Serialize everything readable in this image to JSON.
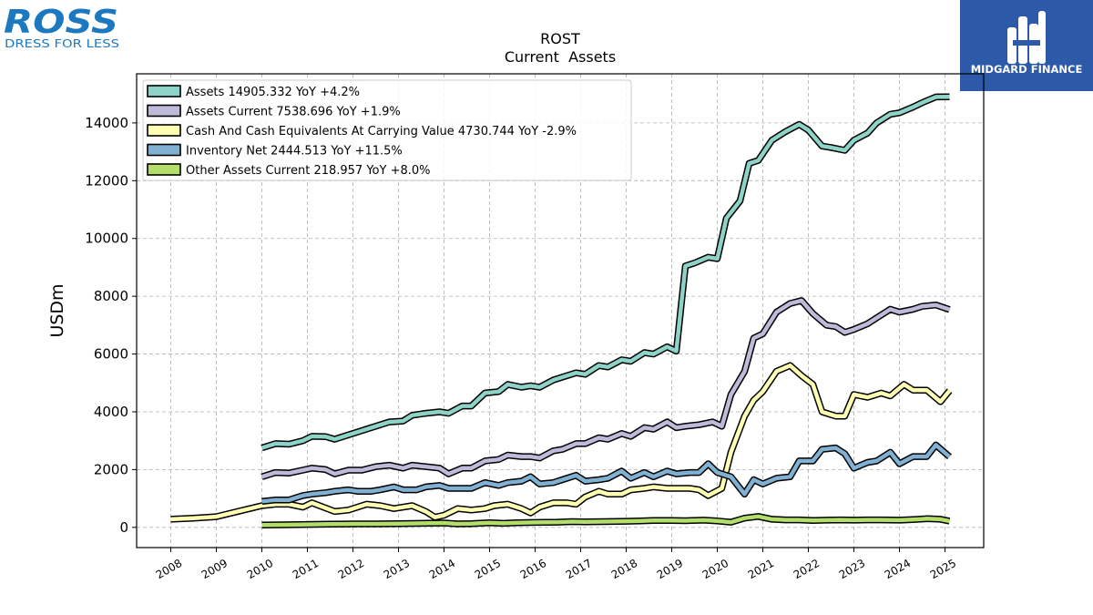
{
  "logos": {
    "left": {
      "brand": "ROSS",
      "tagline": "DRESS FOR LESS",
      "color": "#1c79c0"
    },
    "right": {
      "brand": "MIDGARD FINANCE",
      "bg": "#2c5aa8"
    }
  },
  "chart_data": {
    "type": "line",
    "title": "ROST",
    "subtitle": "Current  Assets",
    "ylabel": "USDm",
    "xlabel": "",
    "xlim": [
      2007.25,
      2025.85
    ],
    "ylim": [
      -700,
      15700
    ],
    "yticks": [
      0,
      2000,
      4000,
      6000,
      8000,
      10000,
      12000,
      14000
    ],
    "xticks": [
      2008,
      2009,
      2010,
      2011,
      2012,
      2013,
      2014,
      2015,
      2016,
      2017,
      2018,
      2019,
      2020,
      2021,
      2022,
      2023,
      2024,
      2025
    ],
    "grid": true,
    "legend_position": "top-left",
    "series": [
      {
        "name": "Assets  14905.332 YoY +4.2%",
        "color": "#8dd3c7",
        "points": [
          [
            2010.0,
            2750
          ],
          [
            2010.3,
            2900
          ],
          [
            2010.6,
            2880
          ],
          [
            2010.9,
            3000
          ],
          [
            2011.1,
            3150
          ],
          [
            2011.4,
            3140
          ],
          [
            2011.6,
            3050
          ],
          [
            2011.9,
            3200
          ],
          [
            2012.2,
            3350
          ],
          [
            2012.5,
            3500
          ],
          [
            2012.8,
            3650
          ],
          [
            2013.1,
            3680
          ],
          [
            2013.3,
            3880
          ],
          [
            2013.6,
            3950
          ],
          [
            2013.9,
            4000
          ],
          [
            2014.1,
            3950
          ],
          [
            2014.4,
            4200
          ],
          [
            2014.6,
            4200
          ],
          [
            2014.9,
            4650
          ],
          [
            2015.2,
            4700
          ],
          [
            2015.4,
            4950
          ],
          [
            2015.7,
            4850
          ],
          [
            2015.9,
            4900
          ],
          [
            2016.1,
            4850
          ],
          [
            2016.4,
            5100
          ],
          [
            2016.6,
            5200
          ],
          [
            2016.9,
            5350
          ],
          [
            2017.1,
            5300
          ],
          [
            2017.4,
            5600
          ],
          [
            2017.6,
            5550
          ],
          [
            2017.9,
            5800
          ],
          [
            2018.1,
            5750
          ],
          [
            2018.4,
            6050
          ],
          [
            2018.6,
            6000
          ],
          [
            2018.9,
            6250
          ],
          [
            2019.1,
            6100
          ],
          [
            2019.3,
            9050
          ],
          [
            2019.5,
            9150
          ],
          [
            2019.8,
            9350
          ],
          [
            2020.0,
            9300
          ],
          [
            2020.2,
            10700
          ],
          [
            2020.5,
            11300
          ],
          [
            2020.7,
            12600
          ],
          [
            2020.9,
            12700
          ],
          [
            2021.2,
            13400
          ],
          [
            2021.5,
            13700
          ],
          [
            2021.8,
            13950
          ],
          [
            2022.0,
            13750
          ],
          [
            2022.3,
            13200
          ],
          [
            2022.5,
            13150
          ],
          [
            2022.8,
            13050
          ],
          [
            2023.0,
            13400
          ],
          [
            2023.3,
            13650
          ],
          [
            2023.5,
            14000
          ],
          [
            2023.8,
            14300
          ],
          [
            2024.0,
            14350
          ],
          [
            2024.3,
            14550
          ],
          [
            2024.5,
            14700
          ],
          [
            2024.8,
            14900
          ],
          [
            2025.1,
            14905
          ]
        ]
      },
      {
        "name": "Assets Current  7538.696 YoY +1.9%",
        "color": "#bebada",
        "points": [
          [
            2010.0,
            1750
          ],
          [
            2010.3,
            1900
          ],
          [
            2010.6,
            1880
          ],
          [
            2010.9,
            1980
          ],
          [
            2011.1,
            2050
          ],
          [
            2011.4,
            2000
          ],
          [
            2011.6,
            1850
          ],
          [
            2011.9,
            1980
          ],
          [
            2012.2,
            1980
          ],
          [
            2012.5,
            2100
          ],
          [
            2012.8,
            2150
          ],
          [
            2013.1,
            2050
          ],
          [
            2013.3,
            2150
          ],
          [
            2013.6,
            2100
          ],
          [
            2013.9,
            2050
          ],
          [
            2014.1,
            1850
          ],
          [
            2014.4,
            2050
          ],
          [
            2014.6,
            2050
          ],
          [
            2014.9,
            2300
          ],
          [
            2015.2,
            2350
          ],
          [
            2015.4,
            2500
          ],
          [
            2015.7,
            2450
          ],
          [
            2015.9,
            2450
          ],
          [
            2016.1,
            2400
          ],
          [
            2016.4,
            2650
          ],
          [
            2016.6,
            2700
          ],
          [
            2016.9,
            2900
          ],
          [
            2017.1,
            2900
          ],
          [
            2017.4,
            3100
          ],
          [
            2017.6,
            3050
          ],
          [
            2017.9,
            3250
          ],
          [
            2018.1,
            3150
          ],
          [
            2018.4,
            3450
          ],
          [
            2018.6,
            3400
          ],
          [
            2018.9,
            3650
          ],
          [
            2019.1,
            3450
          ],
          [
            2019.3,
            3500
          ],
          [
            2019.6,
            3550
          ],
          [
            2019.9,
            3650
          ],
          [
            2020.1,
            3500
          ],
          [
            2020.3,
            4600
          ],
          [
            2020.6,
            5400
          ],
          [
            2020.8,
            6550
          ],
          [
            2021.0,
            6700
          ],
          [
            2021.3,
            7450
          ],
          [
            2021.6,
            7750
          ],
          [
            2021.85,
            7850
          ],
          [
            2022.1,
            7400
          ],
          [
            2022.4,
            7000
          ],
          [
            2022.6,
            6950
          ],
          [
            2022.8,
            6750
          ],
          [
            2023.0,
            6850
          ],
          [
            2023.3,
            7050
          ],
          [
            2023.5,
            7250
          ],
          [
            2023.8,
            7550
          ],
          [
            2024.0,
            7450
          ],
          [
            2024.3,
            7550
          ],
          [
            2024.5,
            7650
          ],
          [
            2024.8,
            7700
          ],
          [
            2025.1,
            7538
          ]
        ]
      },
      {
        "name": "Cash And Cash Equivalents At Carrying Value  4730.744 YoY -2.9%",
        "color": "#ffffb3",
        "points": [
          [
            2008.0,
            280
          ],
          [
            2008.5,
            320
          ],
          [
            2009.0,
            370
          ],
          [
            2010.0,
            750
          ],
          [
            2010.3,
            800
          ],
          [
            2010.6,
            800
          ],
          [
            2010.9,
            700
          ],
          [
            2011.1,
            850
          ],
          [
            2011.6,
            550
          ],
          [
            2011.9,
            600
          ],
          [
            2012.3,
            800
          ],
          [
            2012.6,
            750
          ],
          [
            2012.9,
            650
          ],
          [
            2013.3,
            750
          ],
          [
            2013.6,
            550
          ],
          [
            2013.8,
            350
          ],
          [
            2014.0,
            420
          ],
          [
            2014.3,
            650
          ],
          [
            2014.6,
            600
          ],
          [
            2014.9,
            650
          ],
          [
            2015.1,
            750
          ],
          [
            2015.4,
            800
          ],
          [
            2015.7,
            650
          ],
          [
            2015.9,
            500
          ],
          [
            2016.1,
            700
          ],
          [
            2016.4,
            850
          ],
          [
            2016.7,
            850
          ],
          [
            2016.9,
            800
          ],
          [
            2017.1,
            1050
          ],
          [
            2017.4,
            1250
          ],
          [
            2017.6,
            1150
          ],
          [
            2017.9,
            1150
          ],
          [
            2018.1,
            1300
          ],
          [
            2018.4,
            1350
          ],
          [
            2018.6,
            1400
          ],
          [
            2018.9,
            1350
          ],
          [
            2019.1,
            1350
          ],
          [
            2019.4,
            1350
          ],
          [
            2019.6,
            1300
          ],
          [
            2019.8,
            1100
          ],
          [
            2020.1,
            1350
          ],
          [
            2020.3,
            2600
          ],
          [
            2020.6,
            3850
          ],
          [
            2020.8,
            4400
          ],
          [
            2021.0,
            4700
          ],
          [
            2021.3,
            5400
          ],
          [
            2021.6,
            5600
          ],
          [
            2021.85,
            5250
          ],
          [
            2022.1,
            4950
          ],
          [
            2022.3,
            4000
          ],
          [
            2022.6,
            3850
          ],
          [
            2022.8,
            3850
          ],
          [
            2023.0,
            4600
          ],
          [
            2023.3,
            4500
          ],
          [
            2023.6,
            4650
          ],
          [
            2023.8,
            4550
          ],
          [
            2024.1,
            4950
          ],
          [
            2024.3,
            4750
          ],
          [
            2024.6,
            4750
          ],
          [
            2024.9,
            4350
          ],
          [
            2025.1,
            4730
          ]
        ]
      },
      {
        "name": "Inventory Net  2444.513 YoY +11.5%",
        "color": "#80b1d3",
        "points": [
          [
            2010.0,
            900
          ],
          [
            2010.3,
            950
          ],
          [
            2010.6,
            950
          ],
          [
            2010.9,
            1100
          ],
          [
            2011.1,
            1150
          ],
          [
            2011.4,
            1200
          ],
          [
            2011.6,
            1250
          ],
          [
            2011.9,
            1300
          ],
          [
            2012.1,
            1250
          ],
          [
            2012.4,
            1250
          ],
          [
            2012.6,
            1300
          ],
          [
            2012.9,
            1400
          ],
          [
            2013.1,
            1300
          ],
          [
            2013.4,
            1300
          ],
          [
            2013.6,
            1400
          ],
          [
            2013.9,
            1450
          ],
          [
            2014.1,
            1350
          ],
          [
            2014.4,
            1350
          ],
          [
            2014.6,
            1350
          ],
          [
            2014.9,
            1550
          ],
          [
            2015.2,
            1450
          ],
          [
            2015.4,
            1550
          ],
          [
            2015.7,
            1600
          ],
          [
            2015.9,
            1750
          ],
          [
            2016.1,
            1500
          ],
          [
            2016.4,
            1550
          ],
          [
            2016.6,
            1650
          ],
          [
            2016.9,
            1800
          ],
          [
            2017.1,
            1600
          ],
          [
            2017.4,
            1650
          ],
          [
            2017.6,
            1700
          ],
          [
            2017.9,
            1950
          ],
          [
            2018.1,
            1700
          ],
          [
            2018.4,
            1900
          ],
          [
            2018.6,
            1750
          ],
          [
            2018.9,
            1950
          ],
          [
            2019.1,
            1850
          ],
          [
            2019.4,
            1900
          ],
          [
            2019.6,
            1900
          ],
          [
            2019.8,
            2200
          ],
          [
            2020.0,
            1900
          ],
          [
            2020.3,
            1750
          ],
          [
            2020.6,
            1150
          ],
          [
            2020.8,
            1650
          ],
          [
            2021.0,
            1500
          ],
          [
            2021.3,
            1700
          ],
          [
            2021.6,
            1750
          ],
          [
            2021.8,
            2300
          ],
          [
            2022.1,
            2300
          ],
          [
            2022.3,
            2700
          ],
          [
            2022.6,
            2750
          ],
          [
            2022.8,
            2550
          ],
          [
            2023.0,
            2050
          ],
          [
            2023.3,
            2250
          ],
          [
            2023.5,
            2300
          ],
          [
            2023.8,
            2600
          ],
          [
            2024.0,
            2200
          ],
          [
            2024.3,
            2450
          ],
          [
            2024.6,
            2450
          ],
          [
            2024.8,
            2850
          ],
          [
            2025.1,
            2444
          ]
        ]
      },
      {
        "name": "Other Assets Current  218.957 YoY +8.0%",
        "color": "#b3de69",
        "points": [
          [
            2010.0,
            80
          ],
          [
            2010.5,
            90
          ],
          [
            2011.0,
            100
          ],
          [
            2011.5,
            110
          ],
          [
            2012.0,
            120
          ],
          [
            2012.5,
            120
          ],
          [
            2013.0,
            130
          ],
          [
            2013.5,
            140
          ],
          [
            2014.0,
            150
          ],
          [
            2014.3,
            120
          ],
          [
            2014.6,
            130
          ],
          [
            2015.0,
            160
          ],
          [
            2015.3,
            140
          ],
          [
            2015.6,
            160
          ],
          [
            2016.0,
            170
          ],
          [
            2016.5,
            180
          ],
          [
            2016.8,
            200
          ],
          [
            2017.1,
            190
          ],
          [
            2017.5,
            200
          ],
          [
            2018.0,
            210
          ],
          [
            2018.3,
            220
          ],
          [
            2018.6,
            240
          ],
          [
            2019.0,
            240
          ],
          [
            2019.3,
            230
          ],
          [
            2019.7,
            250
          ],
          [
            2020.0,
            220
          ],
          [
            2020.3,
            180
          ],
          [
            2020.6,
            320
          ],
          [
            2020.9,
            380
          ],
          [
            2021.2,
            280
          ],
          [
            2021.5,
            260
          ],
          [
            2021.8,
            260
          ],
          [
            2022.1,
            240
          ],
          [
            2022.4,
            250
          ],
          [
            2022.7,
            260
          ],
          [
            2023.0,
            250
          ],
          [
            2023.3,
            260
          ],
          [
            2023.6,
            260
          ],
          [
            2024.0,
            250
          ],
          [
            2024.3,
            270
          ],
          [
            2024.6,
            300
          ],
          [
            2024.9,
            280
          ],
          [
            2025.1,
            219
          ]
        ]
      }
    ]
  }
}
